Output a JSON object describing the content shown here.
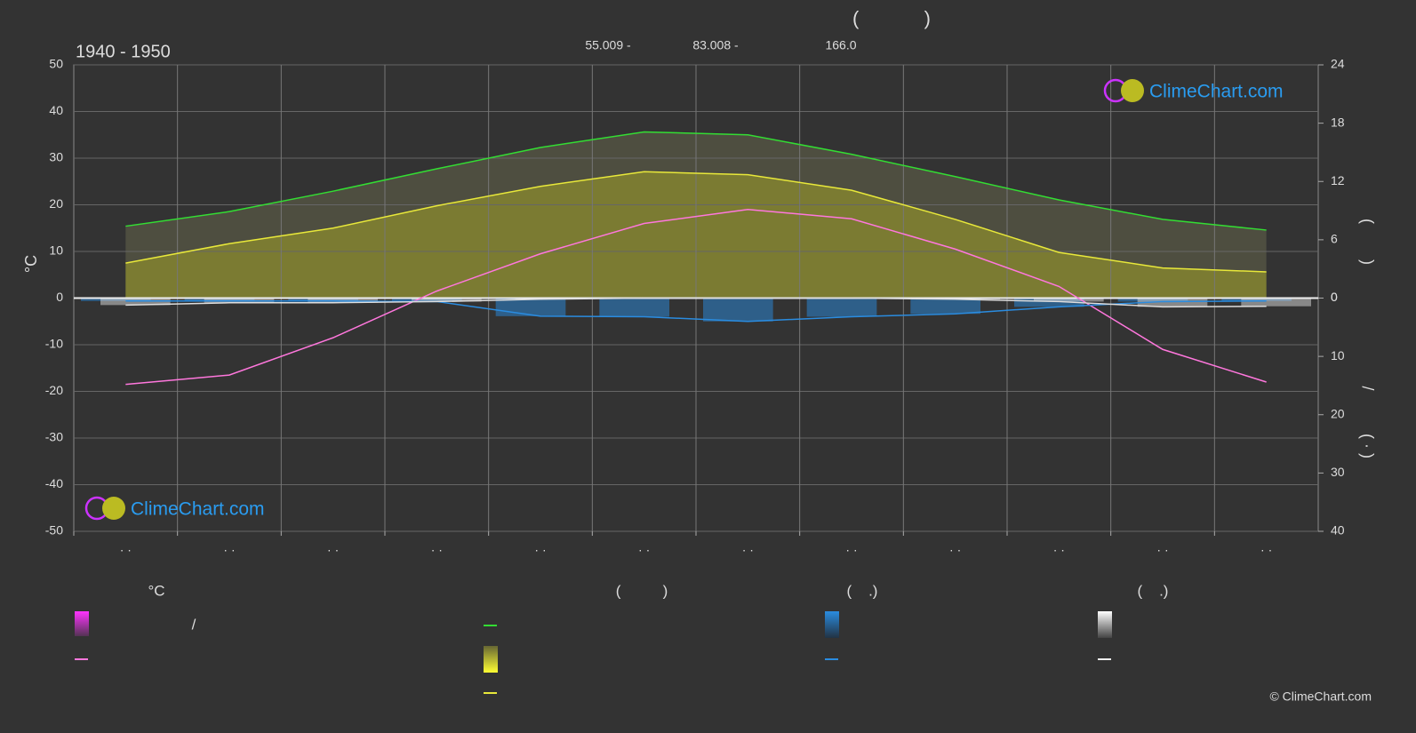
{
  "chart_data": {
    "type": "climate",
    "title": "(            )",
    "period": "1940 - 1950",
    "subtitle_parts": [
      "55.009 -",
      "83.008 -",
      "166.0"
    ],
    "ylabel": "°C",
    "y2label": "(        )",
    "y3label_parts": [
      "/",
      "( · )"
    ],
    "categories": [
      "· ·",
      "· ·",
      "· ·",
      "· ·",
      "· ·",
      "· ·",
      "· ·",
      "· ·",
      "· ·",
      "· ·",
      "· ·",
      "· ·"
    ],
    "ylim": [
      -50,
      50
    ],
    "yticks": [
      -50,
      -40,
      -30,
      -20,
      -10,
      0,
      10,
      20,
      30,
      40,
      50
    ],
    "y2lim": [
      0,
      24
    ],
    "y2ticks": [
      0,
      6,
      12,
      18,
      24
    ],
    "y3lim": [
      0,
      40
    ],
    "y3ticks": [
      0,
      10,
      20,
      30,
      40
    ],
    "grid": true,
    "series": [
      {
        "color": "#33dd33",
        "axis": "y2",
        "values": [
          7.4,
          8.9,
          11.0,
          13.3,
          15.5,
          17.1,
          16.8,
          14.8,
          12.5,
          10.1,
          8.1,
          7.0
        ]
      },
      {
        "color": "#e8e83a",
        "axis": "y2",
        "values": [
          3.6,
          5.6,
          7.2,
          9.5,
          11.5,
          13.0,
          12.7,
          11.1,
          8.1,
          4.7,
          3.1,
          2.7
        ]
      },
      {
        "color": "#ff77dd",
        "axis": "y",
        "values": [
          -18.5,
          -16.5,
          -8.5,
          1.5,
          9.5,
          16,
          19,
          17,
          10.5,
          2.5,
          -11,
          -18
        ]
      },
      {
        "color": "#2a8ce0",
        "axis": "y3",
        "values": [
          0.5,
          0.5,
          0.5,
          0.6,
          3.1,
          3.2,
          4.0,
          3.2,
          2.7,
          1.5,
          0.6,
          0.5
        ]
      },
      {
        "color": "#dddddd",
        "axis": "y3",
        "values": [
          1.2,
          0.8,
          0.8,
          0.6,
          0.2,
          0,
          0,
          0,
          0.2,
          0.6,
          1.5,
          1.4
        ]
      }
    ],
    "legend_headings": [
      "°C",
      "(          )",
      "(    .)",
      "(    .)"
    ],
    "legend_slash": "/",
    "watermark": "ClimeChart.com",
    "copyright": "© ClimeChart.com"
  }
}
